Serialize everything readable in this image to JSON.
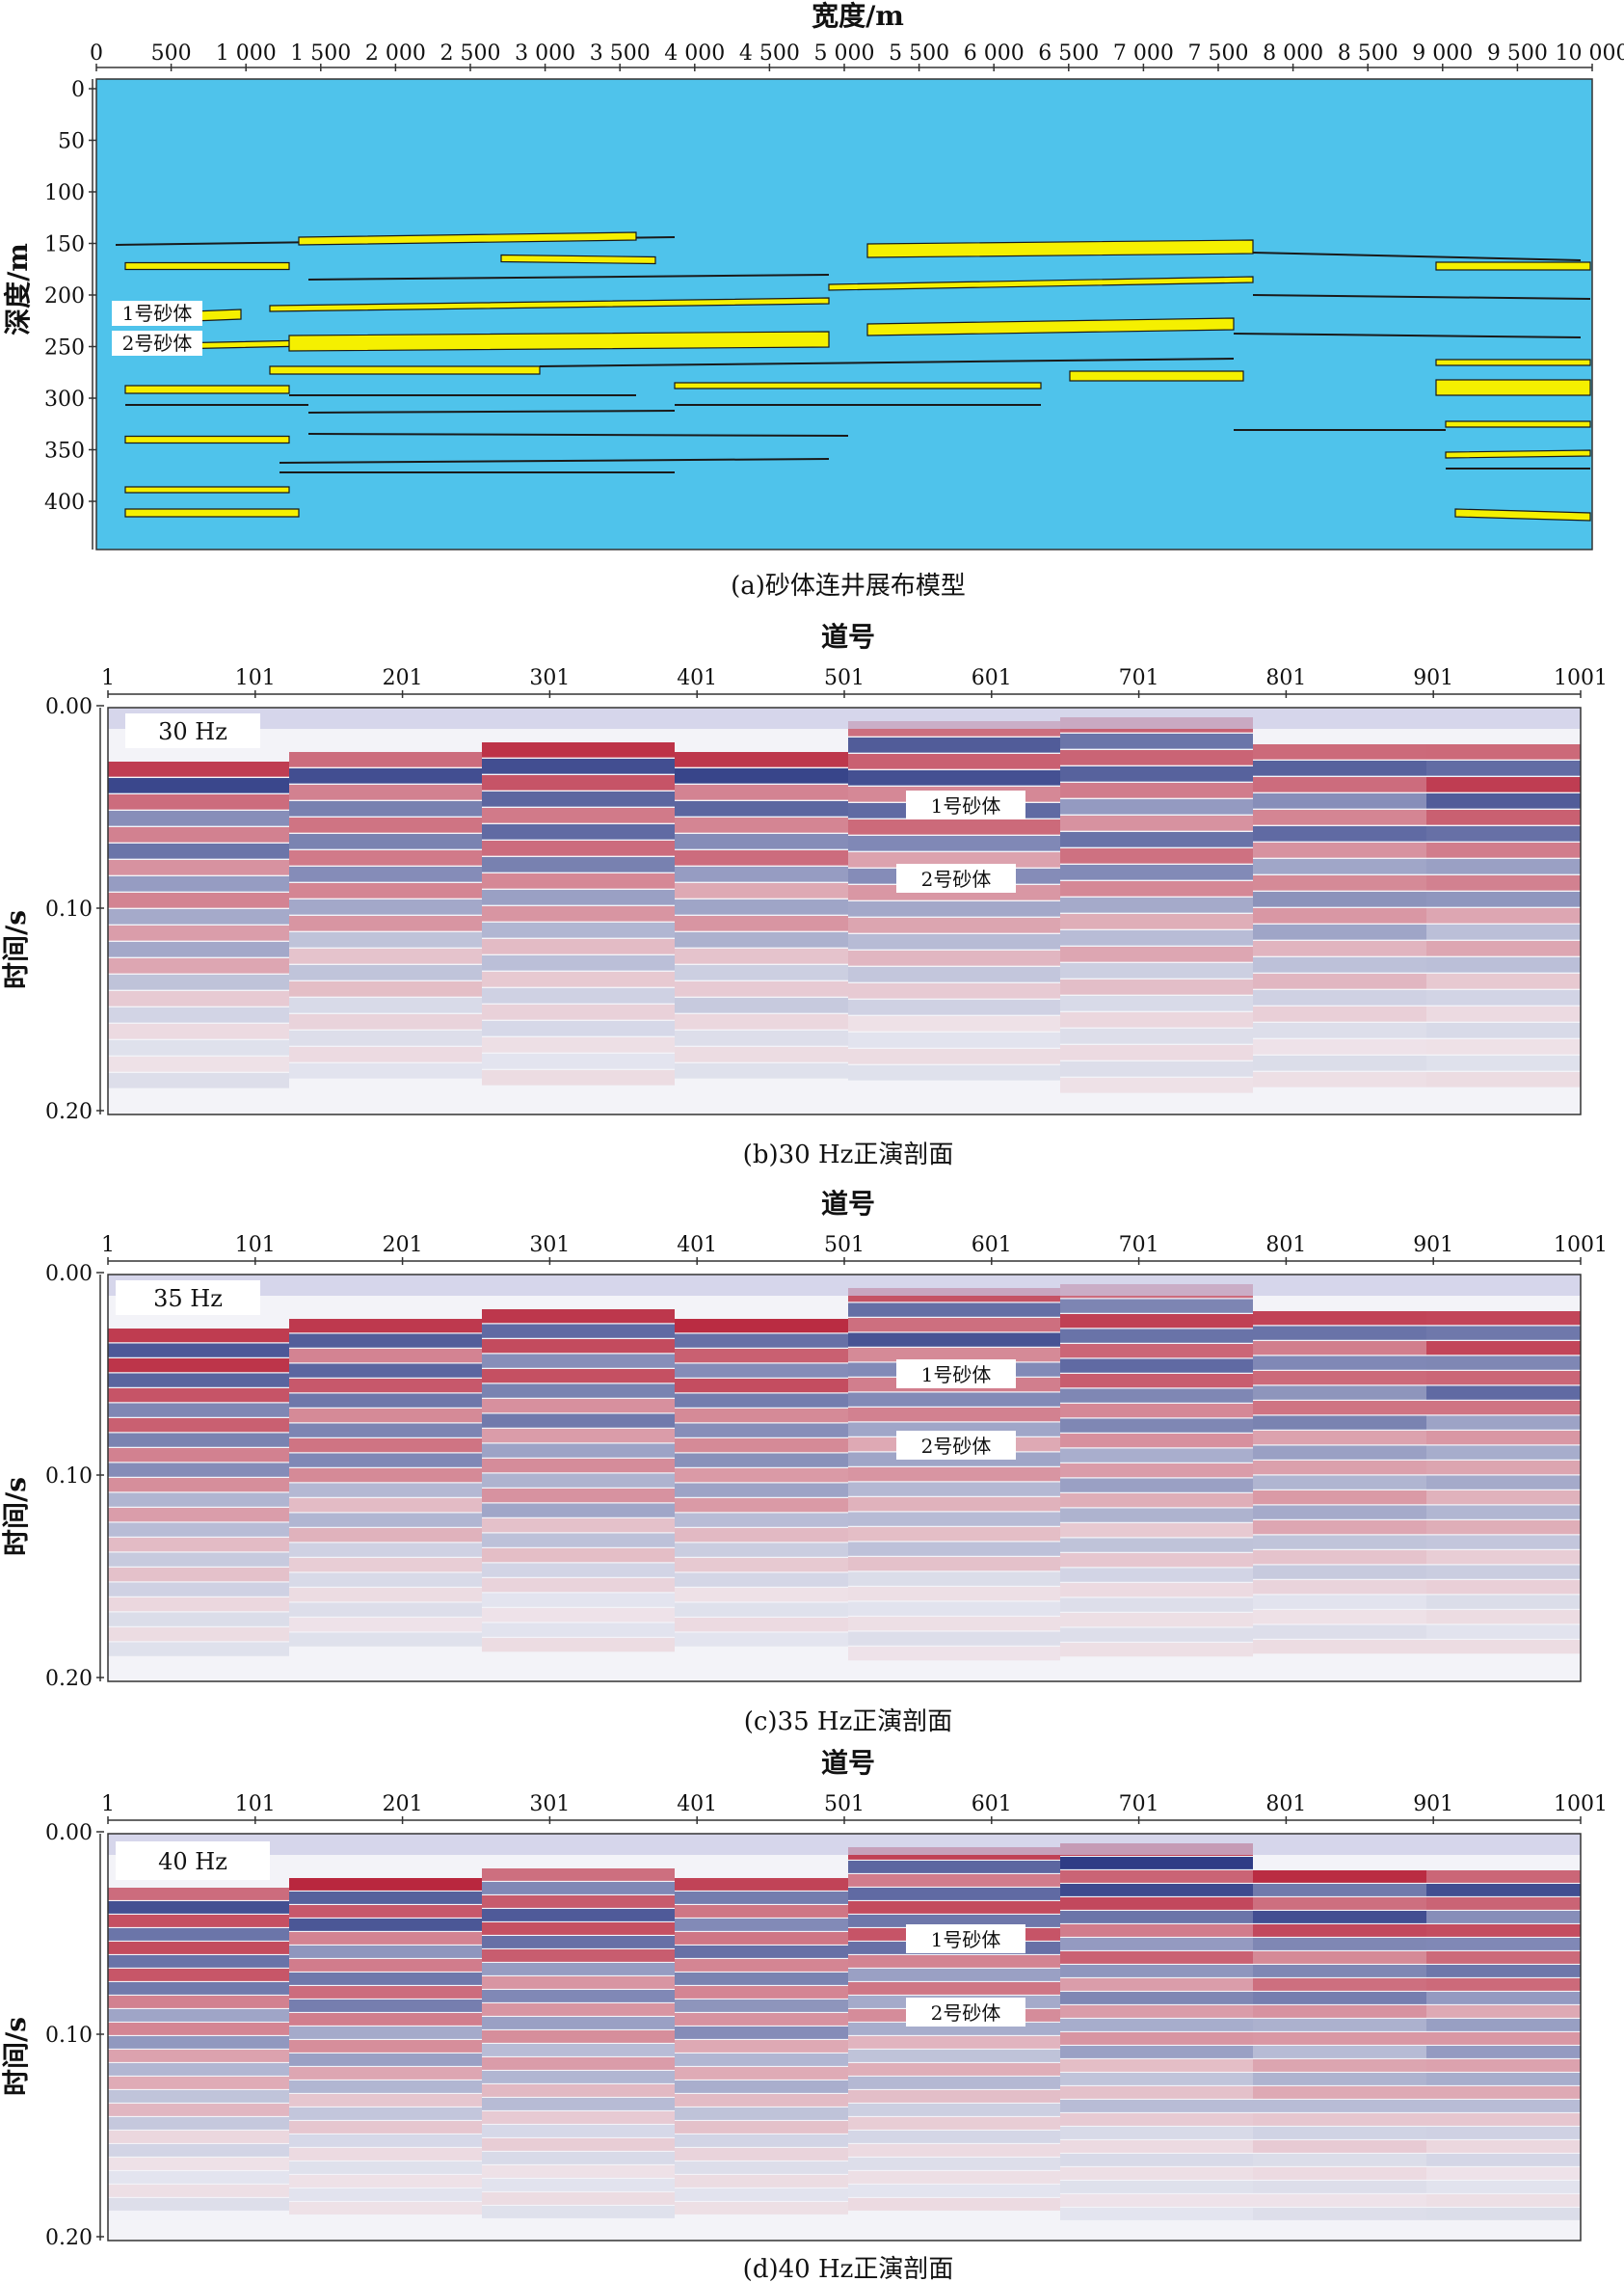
{
  "panel_a": {
    "x_title": "宽度/m",
    "y_title": "深度/m",
    "x_ticks": [
      "0",
      "500",
      "1 000",
      "1 500",
      "2 000",
      "2 500",
      "3 000",
      "3 500",
      "4 000",
      "4 500",
      "5 000",
      "5 500",
      "6 000",
      "6 500",
      "7 000",
      "7 500",
      "8 000",
      "8 500",
      "9 000",
      "9 500",
      "10 000"
    ],
    "y_ticks": [
      "0",
      "50",
      "100",
      "150",
      "200",
      "250",
      "300",
      "350",
      "400"
    ],
    "sand1_label": "1号砂体",
    "sand2_label": "2号砂体",
    "caption": "(a)砂体连井展布模型",
    "colors": {
      "background": "#4fc3eb",
      "sand": "#f5f000",
      "layer_line": "#1a1a1a"
    }
  },
  "sections": [
    {
      "id": "b",
      "x_title": "道号",
      "y_title": "时间/s",
      "x_ticks": [
        "1",
        "101",
        "201",
        "301",
        "401",
        "501",
        "601",
        "701",
        "801",
        "901",
        "1001"
      ],
      "y_ticks": [
        "0.00",
        "0.10",
        "0.20"
      ],
      "freq_label": "30 Hz",
      "sand1_label": "1号砂体",
      "sand2_label": "2号砂体",
      "caption": "(b)30 Hz正演剖面"
    },
    {
      "id": "c",
      "x_title": "道号",
      "y_title": "时间/s",
      "x_ticks": [
        "1",
        "101",
        "201",
        "301",
        "401",
        "501",
        "601",
        "701",
        "801",
        "901",
        "1001"
      ],
      "y_ticks": [
        "0.00",
        "0.10",
        "0.20"
      ],
      "freq_label": "35 Hz",
      "sand1_label": "1号砂体",
      "sand2_label": "2号砂体",
      "caption": "(c)35 Hz正演剖面"
    },
    {
      "id": "d",
      "x_title": "道号",
      "y_title": "时间/s",
      "x_ticks": [
        "1",
        "101",
        "201",
        "301",
        "401",
        "501",
        "601",
        "701",
        "801",
        "901",
        "1001"
      ],
      "y_ticks": [
        "0.00",
        "0.10",
        "0.20"
      ],
      "freq_label": "40 Hz",
      "sand1_label": "1号砂体",
      "sand2_label": "2号砂体",
      "caption": "(d)40 Hz正演剖面"
    }
  ],
  "colors": {
    "positive": "#b3132b",
    "negative": "#1b2a7a",
    "zero": "#f2f2f7"
  }
}
